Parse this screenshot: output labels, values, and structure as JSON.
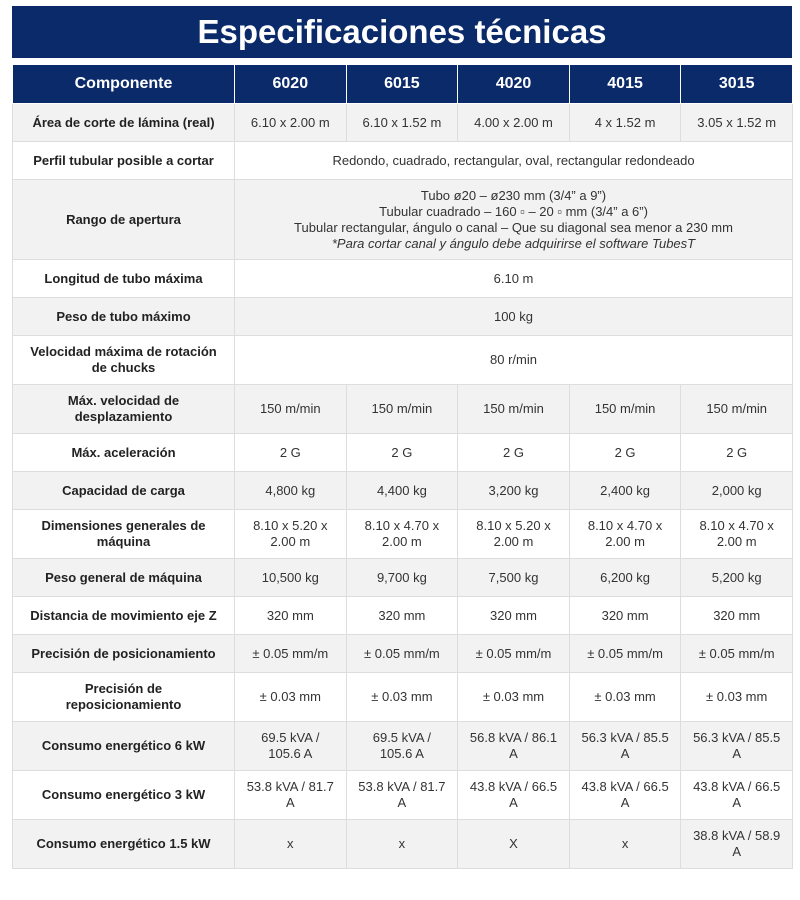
{
  "title": "Especificaciones técnicas",
  "table": {
    "header": [
      "Componente",
      "6020",
      "6015",
      "4020",
      "4015",
      "3015"
    ],
    "rows": [
      {
        "label": "Área de corte de lámina (real)",
        "cells": [
          "6.10 x 2.00 m",
          "6.10 x 1.52 m",
          "4.00 x 2.00 m",
          "4 x 1.52 m",
          "3.05 x 1.52 m"
        ]
      },
      {
        "label": "Perfil tubular posible a cortar",
        "cells": [
          "Redondo, cuadrado, rectangular, oval, rectangular redondeado"
        ]
      },
      {
        "label": "Rango de apertura",
        "lines": [
          "Tubo ø20 – ø230 mm (3/4” a 9”)",
          "Tubular cuadrado – 160 ▫ – 20 ▫ mm (3/4” a 6”)",
          "Tubular rectangular, ángulo o canal – Que su diagonal sea menor a 230 mm"
        ],
        "note": "*Para cortar canal y ángulo debe adquirirse el software TubesT"
      },
      {
        "label": "Longitud de tubo máxima",
        "cells": [
          "6.10 m"
        ]
      },
      {
        "label": "Peso de tubo máximo",
        "cells": [
          "100 kg"
        ]
      },
      {
        "label": "Velocidad máxima de rotación de chucks",
        "cells": [
          "80 r/min"
        ]
      },
      {
        "label": "Máx. velocidad de desplazamiento",
        "cells": [
          "150 m/min",
          "150 m/min",
          "150 m/min",
          "150 m/min",
          "150 m/min"
        ]
      },
      {
        "label": "Máx. aceleración",
        "cells": [
          "2 G",
          "2 G",
          "2 G",
          "2 G",
          "2 G"
        ]
      },
      {
        "label": "Capacidad de carga",
        "cells": [
          "4,800 kg",
          "4,400 kg",
          "3,200 kg",
          "2,400 kg",
          "2,000 kg"
        ]
      },
      {
        "label": "Dimensiones generales de máquina",
        "cells": [
          "8.10 x 5.20 x 2.00 m",
          "8.10 x 4.70 x 2.00 m",
          "8.10 x 5.20 x 2.00 m",
          "8.10 x 4.70 x 2.00 m",
          "8.10 x 4.70 x 2.00 m"
        ]
      },
      {
        "label": "Peso general de máquina",
        "cells": [
          "10,500 kg",
          "9,700 kg",
          "7,500 kg",
          "6,200 kg",
          "5,200 kg"
        ]
      },
      {
        "label": "Distancia de movimiento eje Z",
        "cells": [
          "320 mm",
          "320 mm",
          "320 mm",
          "320 mm",
          "320 mm"
        ]
      },
      {
        "label": "Precisión de posicionamiento",
        "cells": [
          "± 0.05 mm/m",
          "± 0.05 mm/m",
          "± 0.05 mm/m",
          "± 0.05 mm/m",
          "± 0.05 mm/m"
        ]
      },
      {
        "label": "Precisión de reposicionamiento",
        "cells": [
          "± 0.03 mm",
          "± 0.03 mm",
          "± 0.03 mm",
          "± 0.03 mm",
          "± 0.03 mm"
        ]
      },
      {
        "label": "Consumo energético 6 kW",
        "cells": [
          "69.5 kVA / 105.6 A",
          "69.5 kVA / 105.6 A",
          "56.8 kVA / 86.1 A",
          "56.3 kVA / 85.5 A",
          "56.3 kVA / 85.5 A"
        ]
      },
      {
        "label": "Consumo energético 3 kW",
        "cells": [
          "53.8 kVA / 81.7 A",
          "53.8 kVA / 81.7 A",
          "43.8 kVA / 66.5 A",
          "43.8 kVA / 66.5 A",
          "43.8 kVA / 66.5 A"
        ]
      },
      {
        "label": "Consumo energético 1.5 kW",
        "cells": [
          "x",
          "x",
          "X",
          "x",
          "38.8 kVA / 58.9 A"
        ]
      }
    ]
  }
}
